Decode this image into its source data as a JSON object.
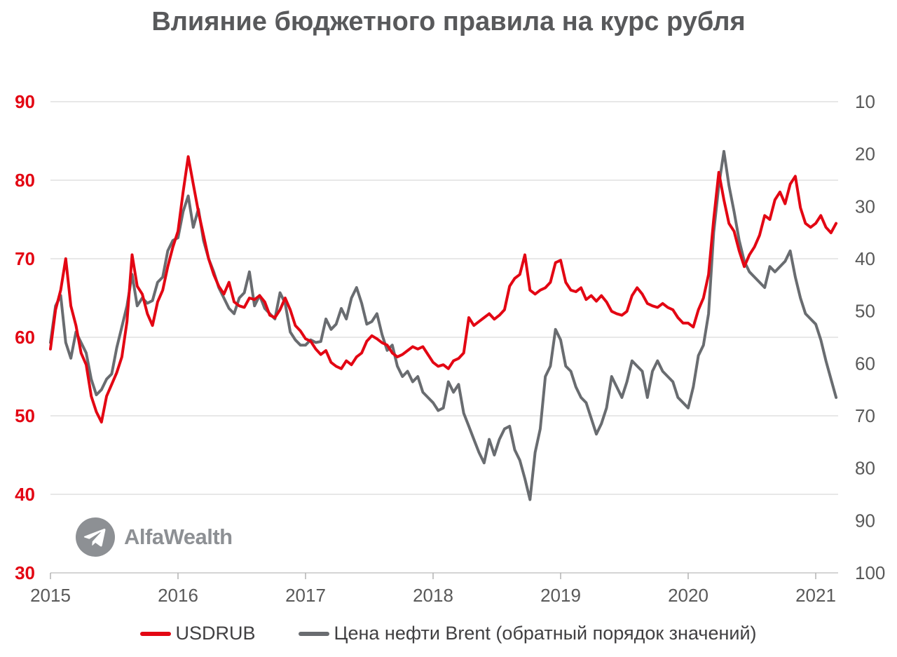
{
  "title": "Влияние бюджетного правила на курс рубля",
  "watermark": {
    "text": "AlfaWealth",
    "icon": "telegram-paper-plane-icon"
  },
  "legend": [
    {
      "label": "USDRUB",
      "color": "#e30613"
    },
    {
      "label": "Цена нефти Brent (обратный порядок значений)",
      "color": "#696c70"
    }
  ],
  "colors": {
    "usdrub_line": "#e30613",
    "brent_line": "#696c70",
    "left_axis_labels": "#e30613",
    "right_axis_labels": "#595959",
    "x_axis_labels": "#595959",
    "gridline": "#d9d9d9",
    "axis_line": "#c6c6c6",
    "tick_mark": "#b3b3b3",
    "title": "#58595b",
    "legend_text": "#414042",
    "watermark": "#8d9094",
    "background": "#ffffff"
  },
  "chart_data": {
    "type": "line",
    "title": "Влияние бюджетного правила на курс рубля",
    "grid": "horizontal",
    "legend_position": "bottom",
    "x_axis": {
      "ticks": [
        2015,
        2016,
        2017,
        2018,
        2019,
        2020,
        2021
      ],
      "tick_labels": [
        "2015",
        "2016",
        "2017",
        "2018",
        "2019",
        "2020",
        "2021"
      ],
      "range": [
        2015,
        2021.2
      ],
      "unit": "year"
    },
    "left_y_axis": {
      "name": "USDRUB",
      "ticks": [
        90,
        80,
        70,
        60,
        50,
        40,
        30
      ],
      "range": [
        30,
        90
      ],
      "inverted": false
    },
    "right_y_axis": {
      "name": "Цена нефти Brent",
      "ticks": [
        10,
        20,
        30,
        40,
        50,
        60,
        70,
        80,
        90,
        100
      ],
      "range": [
        10,
        100
      ],
      "inverted": true
    },
    "x_start": 2015.0,
    "x_step": 0.04,
    "series": [
      {
        "name": "USDRUB",
        "axis": "left",
        "color": "#e30613",
        "values": [
          58.5,
          63.5,
          66.0,
          70.0,
          64.0,
          61.5,
          58.0,
          56.5,
          52.5,
          50.5,
          49.2,
          52.5,
          54.0,
          55.5,
          57.5,
          62.0,
          70.5,
          66.5,
          65.5,
          63.0,
          61.5,
          64.5,
          66.0,
          69.0,
          71.5,
          73.5,
          78.5,
          83.0,
          79.5,
          76.0,
          73.0,
          70.0,
          68.0,
          66.5,
          65.5,
          67.0,
          64.5,
          64.0,
          63.8,
          65.0,
          64.8,
          65.3,
          64.5,
          62.8,
          62.5,
          63.5,
          65.0,
          63.5,
          61.5,
          60.8,
          59.8,
          59.5,
          58.5,
          57.8,
          58.3,
          56.8,
          56.3,
          56.0,
          57.0,
          56.5,
          57.5,
          58.0,
          59.5,
          60.2,
          59.8,
          59.3,
          59.0,
          58.0,
          57.5,
          57.8,
          58.3,
          58.8,
          58.5,
          58.8,
          57.8,
          56.8,
          56.3,
          56.5,
          56.0,
          57.0,
          57.3,
          58.0,
          62.5,
          61.5,
          62.0,
          62.5,
          63.0,
          62.3,
          62.8,
          63.5,
          66.5,
          67.5,
          68.0,
          70.5,
          66.0,
          65.5,
          66.0,
          66.3,
          67.0,
          69.5,
          69.8,
          67.0,
          66.0,
          65.8,
          66.3,
          64.8,
          65.3,
          64.6,
          65.3,
          64.5,
          63.3,
          63.0,
          62.8,
          63.3,
          65.3,
          66.3,
          65.5,
          64.3,
          64.0,
          63.8,
          64.3,
          63.8,
          63.5,
          62.5,
          61.8,
          61.8,
          61.3,
          63.5,
          65.0,
          68.0,
          75.0,
          81.0,
          77.5,
          74.5,
          73.5,
          71.0,
          69.0,
          70.5,
          71.5,
          73.0,
          75.5,
          75.0,
          77.5,
          78.5,
          77.0,
          79.5,
          80.5,
          76.5,
          74.5,
          74.0,
          74.5,
          75.5,
          74.0,
          73.3,
          74.5
        ]
      },
      {
        "name": "Цена нефти Brent (обратный порядок значений)",
        "axis": "right",
        "color": "#696c70",
        "values": [
          56.0,
          49.0,
          47.0,
          56.0,
          59.0,
          54.0,
          56.0,
          58.0,
          63.0,
          66.0,
          65.0,
          63.0,
          62.0,
          57.0,
          53.0,
          49.0,
          43.0,
          49.0,
          47.5,
          48.5,
          48.0,
          44.5,
          43.5,
          38.5,
          36.5,
          36.0,
          31.0,
          28.0,
          34.0,
          30.5,
          36.5,
          40.0,
          42.5,
          45.5,
          47.5,
          49.5,
          50.5,
          47.5,
          46.5,
          42.5,
          49.0,
          47.0,
          49.5,
          50.5,
          51.5,
          46.5,
          48.5,
          54.0,
          55.5,
          56.5,
          56.5,
          55.5,
          56.0,
          55.8,
          51.5,
          53.5,
          52.5,
          49.5,
          51.5,
          47.5,
          45.5,
          48.5,
          52.5,
          52.0,
          50.5,
          54.5,
          57.5,
          56.5,
          60.5,
          62.5,
          61.5,
          63.5,
          62.5,
          65.5,
          66.5,
          67.5,
          69.0,
          68.5,
          63.5,
          65.5,
          64.0,
          69.5,
          72.0,
          74.5,
          77.0,
          79.0,
          74.5,
          77.5,
          74.5,
          72.5,
          72.0,
          76.5,
          78.5,
          82.0,
          86.0,
          77.0,
          72.5,
          62.5,
          60.5,
          53.5,
          55.5,
          60.5,
          61.5,
          64.5,
          66.5,
          67.5,
          70.5,
          73.5,
          71.5,
          68.5,
          62.5,
          64.5,
          66.5,
          63.5,
          59.5,
          60.5,
          61.5,
          66.5,
          61.5,
          59.5,
          61.5,
          62.5,
          63.5,
          66.5,
          67.5,
          68.5,
          64.5,
          58.5,
          56.5,
          50.5,
          35.0,
          26.0,
          19.5,
          26.0,
          31.0,
          36.5,
          40.5,
          42.5,
          43.5,
          44.5,
          45.5,
          41.5,
          42.5,
          41.5,
          40.5,
          38.5,
          43.5,
          47.5,
          50.5,
          51.5,
          52.5,
          55.5,
          59.5,
          63.0,
          66.5
        ]
      }
    ]
  }
}
